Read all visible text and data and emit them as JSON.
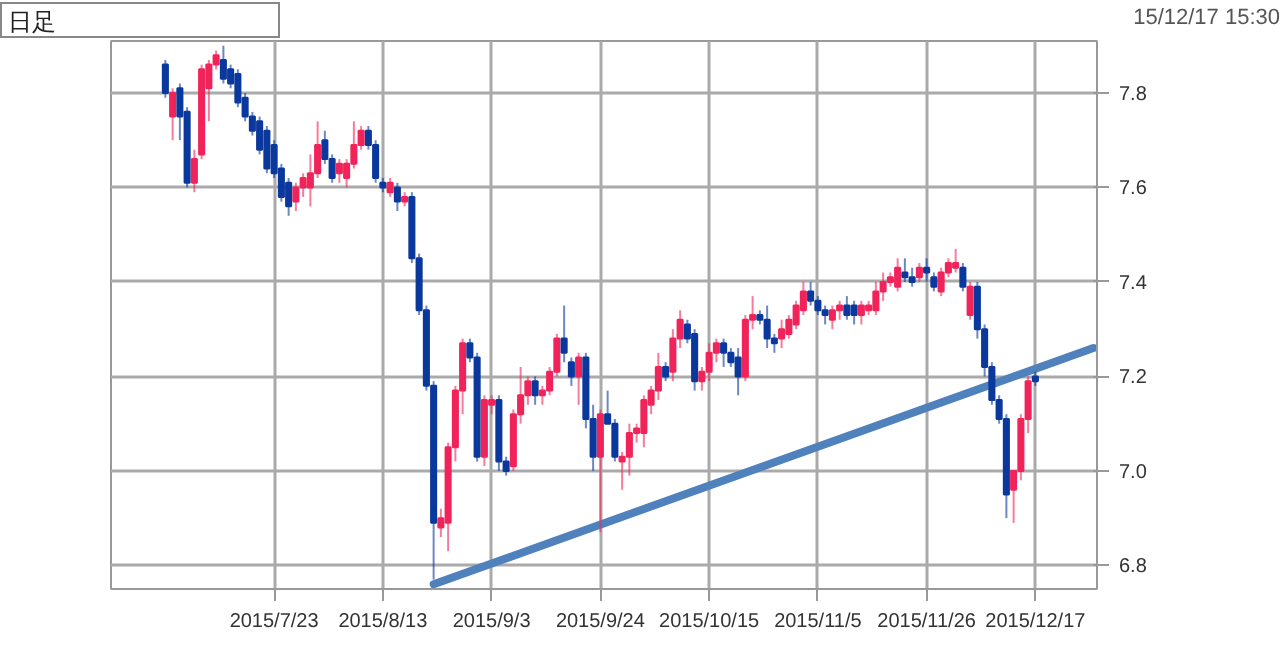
{
  "chart_data": {
    "type": "candlestick",
    "categories": [
      null,
      null,
      null,
      null,
      null,
      null,
      null,
      null,
      null,
      null,
      null,
      null,
      null,
      null,
      null,
      null,
      null,
      null,
      null,
      null,
      null,
      null,
      "2015/7/23",
      null,
      null,
      null,
      null,
      null,
      null,
      null,
      null,
      null,
      null,
      null,
      null,
      null,
      null,
      "2015/8/13",
      null,
      null,
      null,
      null,
      null,
      null,
      null,
      null,
      null,
      null,
      null,
      null,
      null,
      null,
      "2015/9/3",
      null,
      null,
      null,
      null,
      null,
      null,
      null,
      null,
      null,
      null,
      null,
      null,
      null,
      null,
      "2015/9/24",
      null,
      null,
      null,
      null,
      null,
      null,
      null,
      null,
      null,
      null,
      null,
      null,
      null,
      null,
      "2015/10/15",
      null,
      null,
      null,
      null,
      null,
      null,
      null,
      null,
      null,
      null,
      null,
      null,
      null,
      null,
      "2015/11/5",
      null,
      null,
      null,
      null,
      null,
      null,
      null,
      null,
      null,
      null,
      null,
      null,
      null,
      null,
      "2015/11/26",
      null,
      null,
      null,
      null,
      null,
      null,
      null,
      null,
      null,
      null,
      null,
      null,
      null,
      null,
      "2015/12/17",
      null,
      null,
      null,
      null,
      null,
      null,
      null,
      null
    ],
    "ohlc": [
      null,
      null,
      null,
      null,
      null,
      null,
      null,
      [
        7.86,
        7.87,
        7.79,
        7.8
      ],
      [
        7.75,
        7.81,
        7.7,
        7.8
      ],
      [
        7.81,
        7.82,
        7.7,
        7.75
      ],
      [
        7.76,
        7.77,
        7.6,
        7.61
      ],
      [
        7.61,
        7.68,
        7.59,
        7.66
      ],
      [
        7.67,
        7.86,
        7.66,
        7.85
      ],
      [
        7.81,
        7.87,
        7.74,
        7.86
      ],
      [
        7.86,
        7.89,
        7.85,
        7.88
      ],
      [
        7.87,
        7.9,
        7.82,
        7.83
      ],
      [
        7.85,
        7.86,
        7.81,
        7.82
      ],
      [
        7.84,
        7.85,
        7.77,
        7.78
      ],
      [
        7.79,
        7.8,
        7.74,
        7.75
      ],
      [
        7.75,
        7.76,
        7.71,
        7.72
      ],
      [
        7.74,
        7.75,
        7.67,
        7.68
      ],
      [
        7.72,
        7.73,
        7.63,
        7.64
      ],
      [
        7.69,
        7.7,
        7.62,
        7.63
      ],
      [
        7.64,
        7.65,
        7.57,
        7.58
      ],
      [
        7.61,
        7.62,
        7.54,
        7.56
      ],
      [
        7.57,
        7.61,
        7.55,
        7.6
      ],
      [
        7.6,
        7.63,
        7.58,
        7.62
      ],
      [
        7.6,
        7.67,
        7.56,
        7.63
      ],
      [
        7.63,
        7.74,
        7.62,
        7.69
      ],
      [
        7.7,
        7.72,
        7.65,
        7.66
      ],
      [
        7.66,
        7.67,
        7.61,
        7.62
      ],
      [
        7.63,
        7.66,
        7.61,
        7.65
      ],
      [
        7.62,
        7.66,
        7.6,
        7.65
      ],
      [
        7.65,
        7.74,
        7.64,
        7.69
      ],
      [
        7.69,
        7.73,
        7.68,
        7.72
      ],
      [
        7.72,
        7.73,
        7.68,
        7.69
      ],
      [
        7.69,
        7.7,
        7.61,
        7.62
      ],
      [
        7.61,
        7.62,
        7.59,
        7.6
      ],
      [
        7.59,
        7.62,
        7.58,
        7.61
      ],
      [
        7.6,
        7.61,
        7.55,
        7.57
      ],
      [
        7.57,
        7.59,
        7.56,
        7.58
      ],
      [
        7.58,
        7.59,
        7.44,
        7.45
      ],
      [
        7.45,
        7.46,
        7.33,
        7.34
      ],
      [
        7.34,
        7.35,
        7.17,
        7.18
      ],
      [
        7.18,
        7.19,
        6.77,
        6.89
      ],
      [
        6.88,
        6.92,
        6.86,
        6.9
      ],
      [
        6.89,
        7.06,
        6.83,
        7.05
      ],
      [
        7.05,
        7.18,
        7.02,
        7.17
      ],
      [
        7.17,
        7.28,
        7.12,
        7.27
      ],
      [
        7.27,
        7.28,
        7.23,
        7.24
      ],
      [
        7.24,
        7.25,
        7.02,
        7.03
      ],
      [
        7.03,
        7.16,
        7.01,
        7.15
      ],
      [
        7.14,
        7.16,
        7.12,
        7.15
      ],
      [
        7.15,
        7.16,
        7.0,
        7.02
      ],
      [
        7.02,
        7.03,
        6.99,
        7.0
      ],
      [
        7.01,
        7.13,
        7.0,
        7.12
      ],
      [
        7.12,
        7.22,
        7.1,
        7.16
      ],
      [
        7.16,
        7.2,
        7.14,
        7.19
      ],
      [
        7.19,
        7.2,
        7.14,
        7.16
      ],
      [
        7.16,
        7.18,
        7.14,
        7.17
      ],
      [
        7.17,
        7.22,
        7.16,
        7.21
      ],
      [
        7.21,
        7.29,
        7.2,
        7.28
      ],
      [
        7.28,
        7.35,
        7.23,
        7.25
      ],
      [
        7.23,
        7.24,
        7.18,
        7.2
      ],
      [
        7.2,
        7.25,
        7.14,
        7.24
      ],
      [
        7.24,
        7.25,
        7.09,
        7.11
      ],
      [
        7.11,
        7.14,
        7.0,
        7.03
      ],
      [
        7.03,
        7.13,
        6.87,
        7.12
      ],
      [
        7.12,
        7.17,
        7.1,
        7.1
      ],
      [
        7.1,
        7.11,
        7.02,
        7.03
      ],
      [
        7.02,
        7.04,
        6.96,
        7.03
      ],
      [
        7.03,
        7.1,
        6.99,
        7.08
      ],
      [
        7.08,
        7.1,
        7.06,
        7.09
      ],
      [
        7.08,
        7.16,
        7.05,
        7.15
      ],
      [
        7.14,
        7.18,
        7.12,
        7.17
      ],
      [
        7.17,
        7.25,
        7.15,
        7.22
      ],
      [
        7.22,
        7.23,
        7.19,
        7.2
      ],
      [
        7.21,
        7.3,
        7.19,
        7.28
      ],
      [
        7.28,
        7.34,
        7.26,
        7.32
      ],
      [
        7.31,
        7.32,
        7.27,
        7.28
      ],
      [
        7.29,
        7.3,
        7.17,
        7.19
      ],
      [
        7.19,
        7.22,
        7.17,
        7.21
      ],
      [
        7.21,
        7.27,
        7.19,
        7.25
      ],
      [
        7.25,
        7.28,
        7.23,
        7.27
      ],
      [
        7.27,
        7.28,
        7.22,
        7.25
      ],
      [
        7.25,
        7.26,
        7.22,
        7.23
      ],
      [
        7.24,
        7.26,
        7.16,
        7.2
      ],
      [
        7.2,
        7.33,
        7.19,
        7.32
      ],
      [
        7.32,
        7.37,
        7.3,
        7.33
      ],
      [
        7.33,
        7.34,
        7.31,
        7.32
      ],
      [
        7.32,
        7.35,
        7.26,
        7.28
      ],
      [
        7.28,
        7.29,
        7.25,
        7.27
      ],
      [
        7.28,
        7.32,
        7.26,
        7.3
      ],
      [
        7.29,
        7.33,
        7.28,
        7.32
      ],
      [
        7.31,
        7.36,
        7.3,
        7.35
      ],
      [
        7.34,
        7.4,
        7.33,
        7.38
      ],
      [
        7.38,
        7.4,
        7.35,
        7.36
      ],
      [
        7.36,
        7.37,
        7.33,
        7.34
      ],
      [
        7.34,
        7.35,
        7.31,
        7.33
      ],
      [
        7.32,
        7.35,
        7.3,
        7.34
      ],
      [
        7.34,
        7.36,
        7.32,
        7.35
      ],
      [
        7.35,
        7.37,
        7.32,
        7.33
      ],
      [
        7.35,
        7.36,
        7.31,
        7.33
      ],
      [
        7.33,
        7.36,
        7.31,
        7.35
      ],
      [
        7.34,
        7.36,
        7.33,
        7.35
      ],
      [
        7.34,
        7.4,
        7.33,
        7.38
      ],
      [
        7.38,
        7.42,
        7.36,
        7.4
      ],
      [
        7.4,
        7.42,
        7.39,
        7.41
      ],
      [
        7.39,
        7.45,
        7.38,
        7.43
      ],
      [
        7.42,
        7.45,
        7.4,
        7.41
      ],
      [
        7.41,
        7.43,
        7.39,
        7.4
      ],
      [
        7.41,
        7.44,
        7.4,
        7.43
      ],
      [
        7.43,
        7.45,
        7.4,
        7.42
      ],
      [
        7.41,
        7.42,
        7.38,
        7.39
      ],
      [
        7.38,
        7.43,
        7.37,
        7.42
      ],
      [
        7.42,
        7.45,
        7.41,
        7.44
      ],
      [
        7.43,
        7.47,
        7.42,
        7.44
      ],
      [
        7.43,
        7.44,
        7.38,
        7.39
      ],
      [
        7.33,
        7.4,
        7.32,
        7.39
      ],
      [
        7.39,
        7.4,
        7.28,
        7.3
      ],
      [
        7.3,
        7.31,
        7.2,
        7.22
      ],
      [
        7.22,
        7.23,
        7.14,
        7.15
      ],
      [
        7.15,
        7.16,
        7.1,
        7.11
      ],
      [
        7.11,
        7.12,
        6.9,
        6.95
      ],
      [
        6.96,
        7.0,
        6.89,
        7.0
      ],
      [
        7.0,
        7.12,
        6.98,
        7.11
      ],
      [
        7.11,
        7.2,
        7.08,
        7.19
      ],
      [
        7.2,
        7.21,
        7.18,
        7.19
      ],
      null,
      null,
      null,
      null,
      null,
      null,
      null,
      null
    ],
    "colors": [
      null,
      null,
      null,
      null,
      null,
      null,
      null,
      "#0a389c",
      "#f0245a",
      "#0a389c",
      "#0a389c",
      "#f0245a",
      "#f0245a",
      "#f0245a",
      "#f0245a",
      "#0a389c",
      "#0a389c",
      "#0a389c",
      "#0a389c",
      "#0a389c",
      "#0a389c",
      "#0a389c",
      "#0a389c",
      "#0a389c",
      "#0a389c",
      "#f0245a",
      "#f0245a",
      "#f0245a",
      "#f0245a",
      "#0a389c",
      "#0a389c",
      "#f0245a",
      "#f0245a",
      "#f0245a",
      "#f0245a",
      "#0a389c",
      "#0a389c",
      "#0a389c",
      "#f0245a",
      "#0a389c",
      "#f0245a",
      "#0a389c",
      "#0a389c",
      "#0a389c",
      "#0a389c",
      "#f0245a",
      "#f0245a",
      "#f0245a",
      "#f0245a",
      "#0a389c",
      "#0a389c",
      "#f0245a",
      "#f0245a",
      "#0a389c",
      "#0a389c",
      "#f0245a",
      "#f0245a",
      "#f0245a",
      "#0a389c",
      "#f0245a",
      "#f0245a",
      "#f0245a",
      "#0a389c",
      "#0a389c",
      "#f0245a",
      "#0a389c",
      "#0a389c",
      "#f0245a",
      "#0a389c",
      "#0a389c",
      "#f0245a",
      "#f0245a",
      "#f0245a",
      "#f0245a",
      "#f0245a",
      "#f0245a",
      "#0a389c",
      "#f0245a",
      "#f0245a",
      "#0a389c",
      "#0a389c",
      "#f0245a",
      "#f0245a",
      "#f0245a",
      "#0a389c",
      "#0a389c",
      "#0a389c",
      "#f0245a",
      "#f0245a",
      "#0a389c",
      "#0a389c",
      "#0a389c",
      "#f0245a",
      "#f0245a",
      "#f0245a",
      "#f0245a",
      "#0a389c",
      "#0a389c",
      "#0a389c",
      "#f0245a",
      "#f0245a",
      "#0a389c",
      "#0a389c",
      "#f0245a",
      "#f0245a",
      "#f0245a",
      "#f0245a",
      "#f0245a",
      "#f0245a",
      "#0a389c",
      "#0a389c",
      "#f0245a",
      "#0a389c",
      "#0a389c",
      "#f0245a",
      "#f0245a",
      "#f0245a",
      "#0a389c",
      "#f0245a",
      "#0a389c",
      "#0a389c",
      "#0a389c",
      "#0a389c",
      "#0a389c",
      "#f0245a",
      "#f0245a",
      "#f0245a",
      "#0a389c",
      null,
      null,
      null,
      null,
      null,
      null,
      null,
      null
    ],
    "series": [
      {
        "type": "line",
        "color": "#4f81bd",
        "values": [
          null,
          null,
          null,
          null,
          null,
          null,
          null,
          null,
          null,
          null,
          null,
          null,
          null,
          null,
          null,
          null,
          null,
          null,
          null,
          null,
          null,
          null,
          null,
          null,
          null,
          null,
          null,
          null,
          null,
          null,
          null,
          null,
          null,
          null,
          null,
          null,
          null,
          null,
          null,
          null,
          null,
          null,
          null,
          null,
          6.76,
          null,
          null,
          null,
          null,
          null,
          null,
          null,
          null,
          null,
          null,
          null,
          null,
          null,
          null,
          null,
          null,
          null,
          null,
          null,
          null,
          null,
          null,
          null,
          null,
          null,
          null,
          null,
          null,
          null,
          null,
          null,
          null,
          null,
          null,
          null,
          null,
          null,
          null,
          null,
          null,
          null,
          null,
          null,
          null,
          null,
          null,
          null,
          null,
          null,
          null,
          null,
          null,
          null,
          null,
          null,
          null,
          null,
          null,
          null,
          null,
          null,
          null,
          null,
          null,
          null,
          null,
          null,
          null,
          null,
          null,
          null,
          null,
          null,
          null,
          null,
          null,
          null,
          null,
          null,
          null,
          null,
          null,
          null,
          null,
          null,
          null,
          null,
          null,
          null,
          null,
          7.26
        ]
      }
    ],
    "ylim": [
      6.75,
      7.91
    ],
    "yticks": [
      {
        "value": 6.8,
        "label": "6.8"
      },
      {
        "value": 7.0,
        "label": "7.0"
      },
      {
        "value": 7.2,
        "label": "7.2"
      },
      {
        "value": 7.4,
        "label": "7.4"
      },
      {
        "value": 7.6,
        "label": "7.6"
      },
      {
        "value": 7.8,
        "label": "7.8"
      }
    ],
    "grid": true,
    "annotations": [
      "日足",
      "15/12/17 15:30"
    ]
  }
}
